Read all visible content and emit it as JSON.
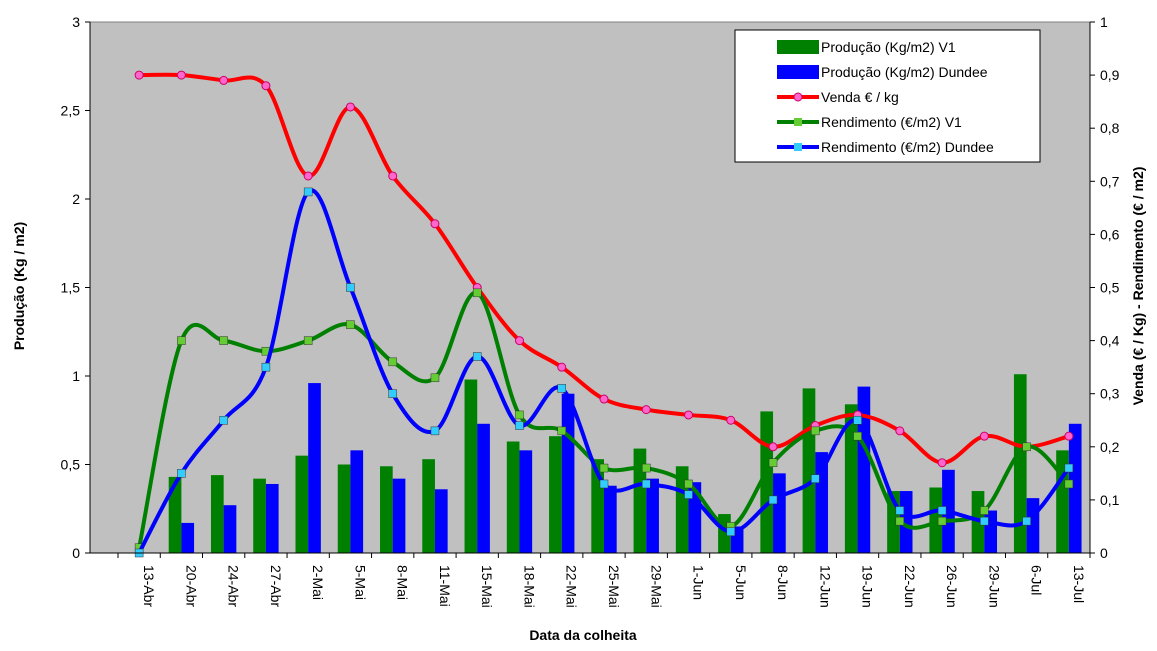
{
  "chart_data": {
    "type": "bar",
    "xlabel": "Data da colheita",
    "ylabel": "Produção (Kg / m2)",
    "y2label": "Venda (€ / Kg) - Rendimento (€ / m2)",
    "ylim": [
      0,
      3
    ],
    "y2lim": [
      0,
      1
    ],
    "yticks": [
      "0",
      "0,5",
      "1",
      "1,5",
      "2",
      "2,5",
      "3"
    ],
    "y2ticks": [
      "0",
      "0,1",
      "0,2",
      "0,3",
      "0,4",
      "0,5",
      "0,6",
      "0,7",
      "0,8",
      "0,9",
      "1"
    ],
    "categories": [
      "13-Abr",
      "20-Abr",
      "24-Abr",
      "27-Abr",
      "2-Mai",
      "5-Mai",
      "8-Mai",
      "11-Mai",
      "15-Mai",
      "18-Mai",
      "22-Mai",
      "25-Mai",
      "29-Mai",
      "1-Jun",
      "5-Jun",
      "8-Jun",
      "12-Jun",
      "19-Jun",
      "22-Jun",
      "26-Jun",
      "29-Jun",
      "6-Jul",
      "13-Jul"
    ],
    "legend_position": "top-right",
    "plot_background": "#c0c0c0",
    "series": [
      {
        "name": "Produção (Kg/m2) V1",
        "kind": "bar",
        "axis": "left",
        "color": "#008000",
        "values": [
          0,
          0.43,
          0.44,
          0.42,
          0.55,
          0.5,
          0.49,
          0.53,
          0.98,
          0.63,
          0.66,
          0.53,
          0.59,
          0.49,
          0.22,
          0.8,
          0.93,
          0.84,
          0.35,
          0.37,
          0.35,
          1.01,
          0.58
        ]
      },
      {
        "name": "Produção (Kg/m2) Dundee",
        "kind": "bar",
        "axis": "left",
        "color": "#0000ff",
        "values": [
          0,
          0.17,
          0.27,
          0.39,
          0.96,
          0.58,
          0.42,
          0.36,
          0.73,
          0.58,
          0.9,
          0.38,
          0.42,
          0.4,
          0.15,
          0.45,
          0.57,
          0.94,
          0.35,
          0.47,
          0.24,
          0.31,
          0.73
        ]
      },
      {
        "name": "Venda € / kg",
        "kind": "line",
        "axis": "right",
        "color": "#ff0000",
        "marker_color": "#ff66cc",
        "values": [
          0.9,
          0.9,
          0.89,
          0.88,
          0.71,
          0.84,
          0.71,
          0.62,
          0.5,
          0.4,
          0.35,
          0.29,
          0.27,
          0.26,
          0.25,
          0.2,
          0.24,
          0.26,
          0.23,
          0.17,
          0.22,
          0.2,
          0.22
        ]
      },
      {
        "name": "Rendimento (€/m2) V1",
        "kind": "line",
        "axis": "right",
        "color": "#008000",
        "marker_color": "#66cc33",
        "values": [
          0.01,
          0.4,
          0.4,
          0.38,
          0.4,
          0.43,
          0.36,
          0.33,
          0.49,
          0.26,
          0.23,
          0.16,
          0.16,
          0.13,
          0.05,
          0.17,
          0.23,
          0.22,
          0.06,
          0.06,
          0.08,
          0.2,
          0.13
        ]
      },
      {
        "name": "Rendimento (€/m2) Dundee",
        "kind": "line",
        "axis": "right",
        "color": "#0000ff",
        "marker_color": "#33ccff",
        "values": [
          0.0,
          0.15,
          0.25,
          0.35,
          0.68,
          0.5,
          0.3,
          0.23,
          0.37,
          0.24,
          0.31,
          0.13,
          0.13,
          0.11,
          0.04,
          0.1,
          0.14,
          0.25,
          0.08,
          0.08,
          0.06,
          0.06,
          0.16
        ]
      }
    ]
  }
}
